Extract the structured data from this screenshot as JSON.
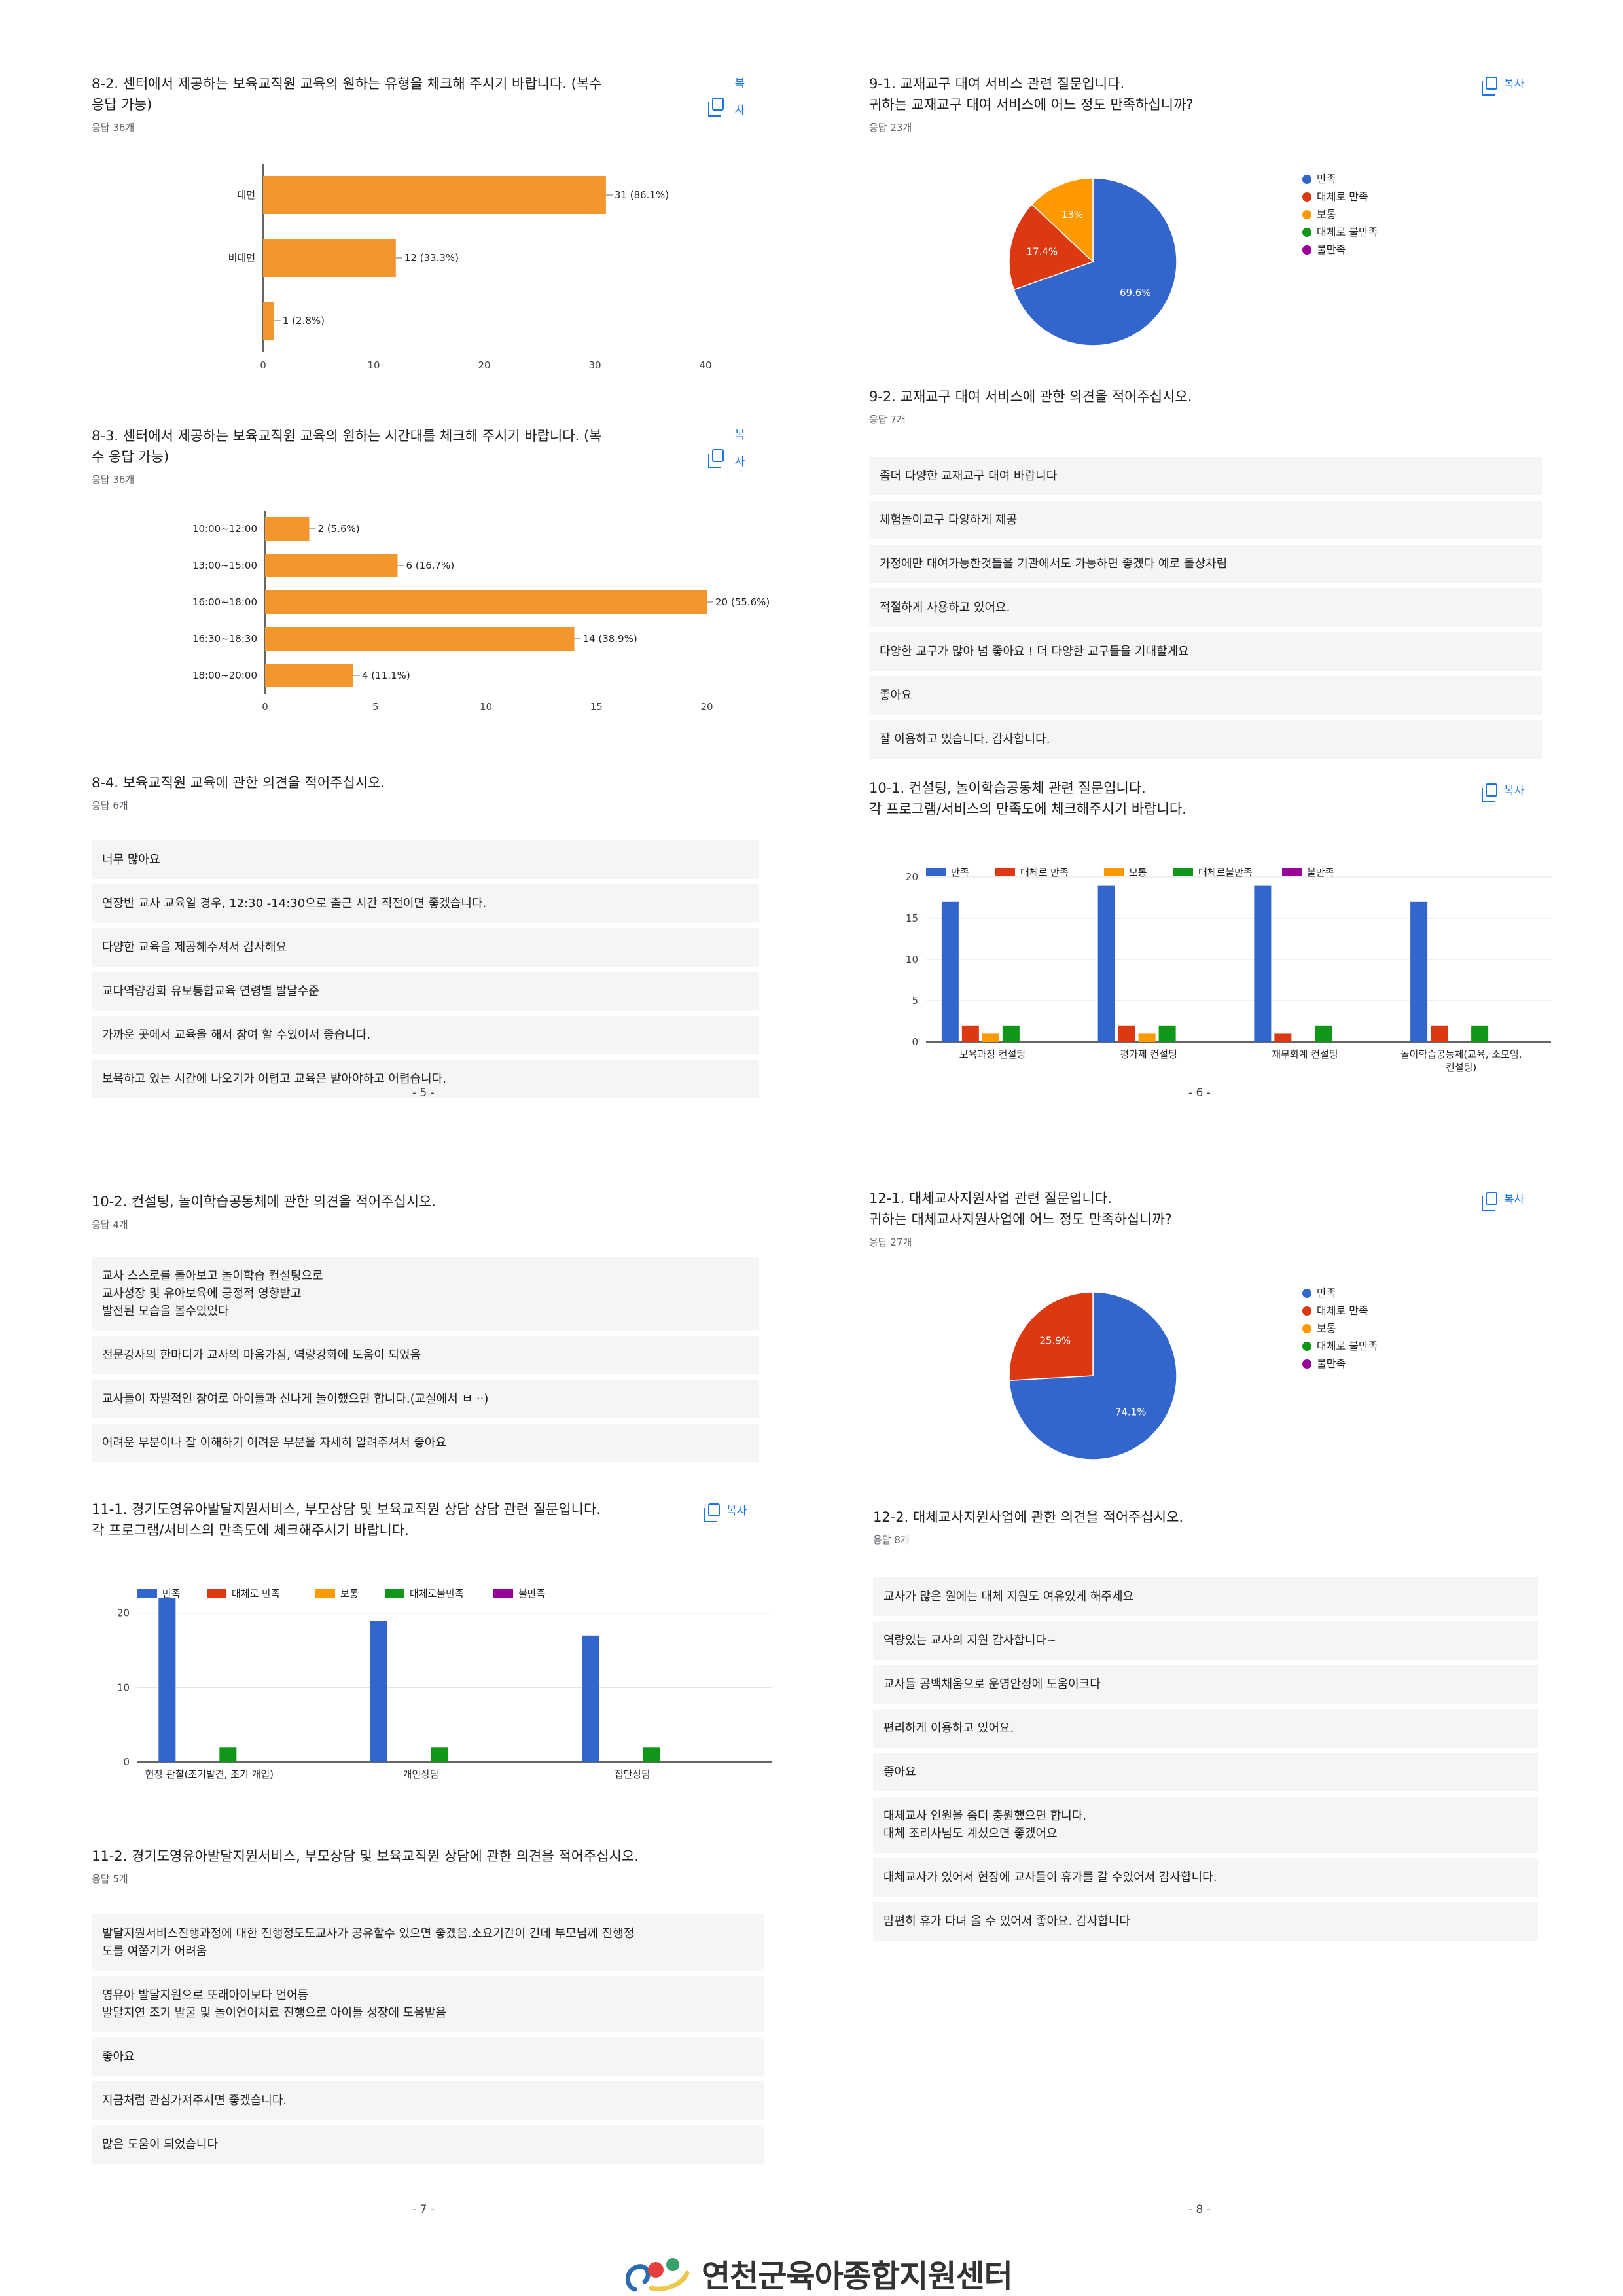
{
  "colors": {
    "blue": "#3366cc",
    "red": "#dc3912",
    "orange": "#ff9900",
    "green": "#109618",
    "purple": "#990099",
    "bar_orange": "#f3962e",
    "grid": "#e0e0e0"
  },
  "copy_label": "복사",
  "footer": {
    "org_name": "연천군육아종합지원센터"
  },
  "pages": {
    "p5": "- 5 -",
    "p6": "- 6 -",
    "p7": "- 7 -",
    "p8": "- 8 -"
  },
  "q8_2": {
    "title": "8-2. 센터에서 제공하는 보육교직원 교육의 원하는 유형을 체크해 주시기 바랍니다. (복수\n응답 가능)",
    "count": "응답 36개",
    "copy": "복\n사"
  },
  "q8_3": {
    "title": "8-3. 센터에서 제공하는 보육교직원 교육의 원하는 시간대를 체크해 주시기 바랍니다. (복\n수 응답 가능)",
    "count": "응답 36개",
    "copy": "복\n사"
  },
  "q8_4": {
    "title": "8-4. 보육교직원 교육에 관한 의견을 적어주십시오.",
    "count": "응답 6개",
    "answers": [
      "너무 많아요",
      "연장반 교사 교육일 경우, 12:30 -14:30으로 출근 시간 직전이면 좋겠습니다.",
      "다양한 교육을 제공해주셔서 감사해요",
      "교다역량강화 유보통합교육 연령별 발달수준",
      "가까운 곳에서 교육을 해서 참여 할 수있어서 좋습니다.",
      "보육하고 있는 시간에 나오기가 어렵고 교육은 받아야하고 어렵습니다."
    ]
  },
  "q9_1": {
    "title": "9-1. 교재교구 대여 서비스 관련 질문입니다.\n귀하는 교재교구 대여 서비스에 어느 정도 만족하십니까?",
    "count": "응답 23개"
  },
  "q9_2": {
    "title": "9-2. 교재교구 대여 서비스에 관한 의견을 적어주십시오.",
    "count": "응답 7개",
    "answers": [
      "좀더 다양한 교재교구 대여 바랍니다",
      "체험놀이교구 다양하게 제공",
      "가정에만 대여가능한것들을 기관에서도 가능하면 좋겠다 예로 돌상차림",
      "적절하게 사용하고 있어요.",
      "다양한 교구가 많아 넘 좋아요 ! 더 다양한 교구들을 기대할게요",
      "좋아요",
      "잘 이용하고 있습니다. 감사합니다."
    ]
  },
  "q10_1": {
    "title": "10-1. 컨설팅, 놀이학습공동체 관련 질문입니다.\n각 프로그램/서비스의 만족도에 체크해주시기 바랍니다."
  },
  "q10_2": {
    "title": "10-2.  컨설팅, 놀이학습공동체에 관한 의견을 적어주십시오.",
    "count": "응답 4개",
    "answers": [
      "교사 스스로를 돌아보고 놀이학습 컨설팅으로\n교사성장 및 유아보육에 긍정적 영향받고\n발전된 모습을 볼수있었다",
      "전문강사의 한마디가 교사의 마음가짐, 역량강화에 도움이 되었음",
      "교사들이 자발적인 참여로 아이들과 신나게 놀이했으면 합니다.(교실에서 ㅂ ··)",
      "어려운 부분이나 잘 이해하기 어려운 부분을 자세히 알려주셔서 좋아요"
    ]
  },
  "q11_1": {
    "title": "11-1. 경기도영유아발달지원서비스, 부모상담 및 보육교직원 상담 상담 관련 질문입니다.\n각 프로그램/서비스의 만족도에 체크해주시기 바랍니다."
  },
  "q11_2": {
    "title": "11-2. 경기도영유아발달지원서비스, 부모상담 및 보육교직원 상담에 관한 의견을 적어주십시오.",
    "count": "응답 5개",
    "answers": [
      "발달지원서비스진행과정에 대한 진행정도도교사가 공유할수 있으면 좋겠음.소요기간이 긴데 부모님께 진행정\n도를 여쭙기가 어려움",
      "영유아 발달지원으로 또래아이보다 언어등\n발달지연 조기 발굴 및 놀이언어치료 진행으로 아이들 성장에 도움받음",
      "좋아요",
      "지금처럼 관심가져주시면 좋겠습니다.",
      "많은 도움이 되었습니다"
    ]
  },
  "q12_1": {
    "title": "12-1. 대체교사지원사업 관련 질문입니다.\n귀하는 대체교사지원사업에 어느 정도 만족하십니까?",
    "count": "응답 27개"
  },
  "q12_2": {
    "title": "12-2.  대체교사지원사업에 관한 의견을 적어주십시오.",
    "count": "응답 8개",
    "answers": [
      "교사가 많은 원에는 대체 지원도 여유있게 해주세요",
      "역량있는 교사의 지원 감사합니다~",
      "교사들 공백채움으로 운영안정에 도움이크다",
      "편리하게 이용하고 있어요.",
      "좋아요",
      "대체교사 인원을 좀더 충원했으면 합니다.\n대체 조리사님도 계셨으면 좋겠어요",
      "대체교사가 있어서 현장에 교사들이 휴가를 갈 수있어서 감사합니다.",
      "맘편히 휴가 다녀 올 수 있어서 좋아요. 감사합니다"
    ]
  },
  "chart_data": [
    {
      "id": "c8_2",
      "type": "bar",
      "orientation": "horizontal",
      "categories": [
        "대면",
        "비대면",
        ""
      ],
      "values": [
        31,
        12,
        1
      ],
      "labels": [
        "31 (86.1%)",
        "12 (33.3%)",
        "1 (2.8%)"
      ],
      "xlim": [
        0,
        40
      ],
      "xticks": [
        0,
        10,
        20,
        30,
        40
      ],
      "color": "#f3962e"
    },
    {
      "id": "c8_3",
      "type": "bar",
      "orientation": "horizontal",
      "categories": [
        "10:00~12:00",
        "13:00~15:00",
        "16:00~18:00",
        "16:30~18:30",
        "18:00~20:00"
      ],
      "values": [
        2,
        6,
        20,
        14,
        4
      ],
      "labels": [
        "2 (5.6%)",
        "6 (16.7%)",
        "20 (55.6%)",
        "14 (38.9%)",
        "4 (11.1%)"
      ],
      "xlim": [
        0,
        20
      ],
      "xticks": [
        0,
        5,
        10,
        15,
        20
      ],
      "color": "#f3962e"
    },
    {
      "id": "c9_1",
      "type": "pie",
      "legend": [
        "만족",
        "대체로 만족",
        "보통",
        "대체로 불만족",
        "불만족"
      ],
      "values": [
        69.6,
        17.4,
        13,
        0,
        0
      ],
      "labels": [
        "69.6%",
        "17.4%",
        "13%",
        "",
        ""
      ],
      "colors": [
        "#3366cc",
        "#dc3912",
        "#ff9900",
        "#109618",
        "#990099"
      ]
    },
    {
      "id": "c10_1",
      "type": "bar",
      "categories": [
        "보육과정 컨설팅",
        "평가제 컨설팅",
        "재무회계 컨설팅",
        "놀이학습공동체(교육, 소모임,\n컨설팅)"
      ],
      "series": [
        {
          "name": "만족",
          "values": [
            17,
            19,
            19,
            17
          ],
          "color": "#3366cc"
        },
        {
          "name": "대체로 만족",
          "values": [
            2,
            2,
            1,
            2
          ],
          "color": "#dc3912"
        },
        {
          "name": "보통",
          "values": [
            1,
            1,
            0,
            0
          ],
          "color": "#ff9900"
        },
        {
          "name": "대체로불만족",
          "values": [
            2,
            2,
            2,
            2
          ],
          "color": "#109618"
        },
        {
          "name": "불만족",
          "values": [
            0,
            0,
            0,
            0
          ],
          "color": "#990099"
        }
      ],
      "ylim": [
        0,
        20
      ],
      "yticks": [
        0,
        5,
        10,
        15,
        20
      ],
      "legend_position": "top"
    },
    {
      "id": "c11_1",
      "type": "bar",
      "categories": [
        "현장 관찰(조기발견, 조기 개입)",
        "개인상담",
        "집단상담"
      ],
      "series": [
        {
          "name": "만족",
          "values": [
            22,
            19,
            17
          ],
          "color": "#3366cc"
        },
        {
          "name": "대체로 만족",
          "values": [
            0,
            0,
            0
          ],
          "color": "#dc3912"
        },
        {
          "name": "보통",
          "values": [
            0,
            0,
            0
          ],
          "color": "#ff9900"
        },
        {
          "name": "대체로불만족",
          "values": [
            2,
            2,
            2
          ],
          "color": "#109618"
        },
        {
          "name": "불만족",
          "values": [
            0,
            0,
            0
          ],
          "color": "#990099"
        }
      ],
      "ylim": [
        0,
        22
      ],
      "yticks": [
        0,
        10,
        20
      ],
      "legend_position": "top"
    },
    {
      "id": "c12_1",
      "type": "pie",
      "legend": [
        "만족",
        "대체로 만족",
        "보통",
        "대체로 불만족",
        "불만족"
      ],
      "values": [
        74.1,
        25.9,
        0,
        0,
        0
      ],
      "labels": [
        "74.1%",
        "25.9%",
        "",
        "",
        ""
      ],
      "colors": [
        "#3366cc",
        "#dc3912",
        "#ff9900",
        "#109618",
        "#990099"
      ]
    }
  ]
}
